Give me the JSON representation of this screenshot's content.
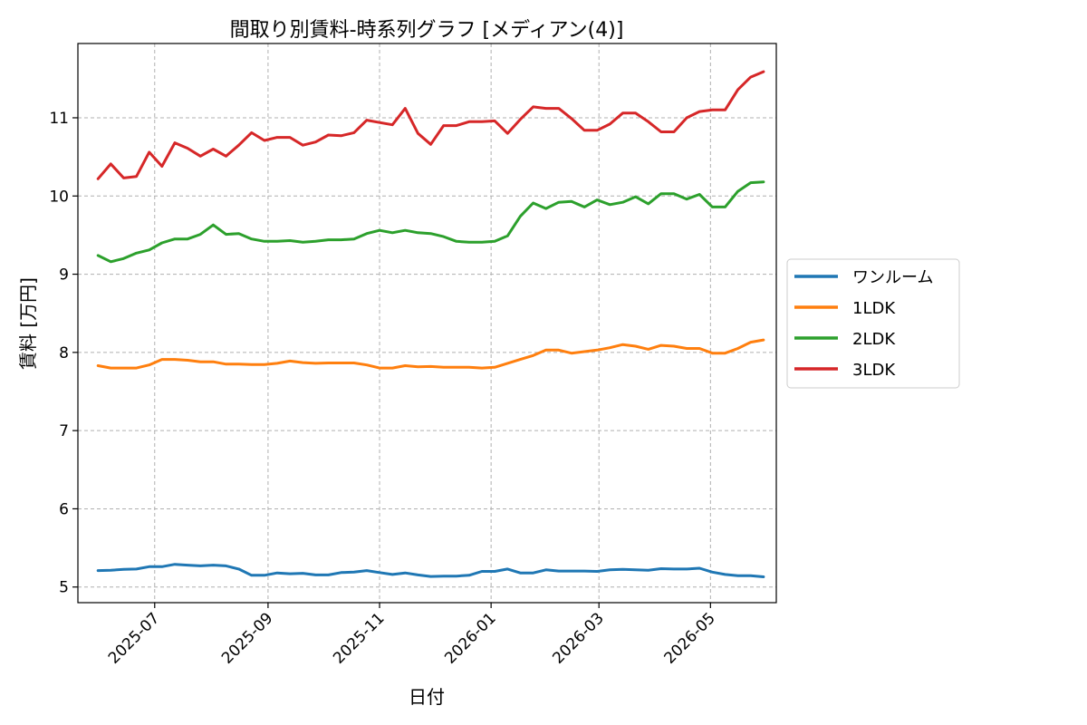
{
  "chart_data": {
    "type": "line",
    "title": "間取り別賃料-時系列グラフ [メディアン(4)]",
    "xlabel": "日付",
    "ylabel": "賃料 [万円]",
    "xlim": [
      "2025-05-20",
      "2026-06-06"
    ],
    "ylim": [
      4.8,
      11.95
    ],
    "yticks": [
      5,
      6,
      7,
      8,
      9,
      10,
      11
    ],
    "xticks": [
      "2025-07",
      "2025-09",
      "2025-11",
      "2026-01",
      "2026-03",
      "2026-05"
    ],
    "grid": true,
    "legend_position": "right-outside",
    "x": [
      "2025-05-31",
      "2025-06-07",
      "2025-06-14",
      "2025-06-21",
      "2025-06-28",
      "2025-07-05",
      "2025-07-12",
      "2025-07-19",
      "2025-07-26",
      "2025-08-02",
      "2025-08-09",
      "2025-08-16",
      "2025-08-23",
      "2025-08-30",
      "2025-09-06",
      "2025-09-13",
      "2025-09-20",
      "2025-09-27",
      "2025-10-04",
      "2025-10-11",
      "2025-10-18",
      "2025-10-25",
      "2025-11-01",
      "2025-11-08",
      "2025-11-15",
      "2025-11-22",
      "2025-11-29",
      "2025-12-06",
      "2025-12-13",
      "2025-12-20",
      "2025-12-27",
      "2026-01-03",
      "2026-01-10",
      "2026-01-17",
      "2026-01-24",
      "2026-01-31",
      "2026-02-07",
      "2026-02-14",
      "2026-02-21",
      "2026-02-28",
      "2026-03-07",
      "2026-03-14",
      "2026-03-21",
      "2026-03-28",
      "2026-04-04",
      "2026-04-11",
      "2026-04-18",
      "2026-04-25",
      "2026-05-02",
      "2026-05-09",
      "2026-05-16",
      "2026-05-23",
      "2026-05-30"
    ],
    "series": [
      {
        "name": "ワンルーム",
        "color": "#1f77b4",
        "values": [
          5.21,
          5.215,
          5.225,
          5.23,
          5.26,
          5.26,
          5.29,
          5.28,
          5.27,
          5.28,
          5.27,
          5.23,
          5.15,
          5.15,
          5.18,
          5.17,
          5.175,
          5.155,
          5.155,
          5.185,
          5.19,
          5.21,
          5.185,
          5.16,
          5.18,
          5.155,
          5.135,
          5.14,
          5.14,
          5.15,
          5.2,
          5.2,
          5.23,
          5.18,
          5.18,
          5.22,
          5.205,
          5.205,
          5.205,
          5.2,
          5.22,
          5.225,
          5.22,
          5.215,
          5.235,
          5.23,
          5.23,
          5.24,
          5.19,
          5.16,
          5.145,
          5.145,
          5.13
        ]
      },
      {
        "name": "1LDK",
        "color": "#ff7f0e",
        "values": [
          7.83,
          7.8,
          7.8,
          7.8,
          7.84,
          7.91,
          7.91,
          7.9,
          7.88,
          7.88,
          7.85,
          7.85,
          7.845,
          7.845,
          7.86,
          7.89,
          7.87,
          7.86,
          7.865,
          7.865,
          7.865,
          7.84,
          7.8,
          7.8,
          7.83,
          7.815,
          7.82,
          7.81,
          7.81,
          7.81,
          7.8,
          7.81,
          7.86,
          7.91,
          7.96,
          8.03,
          8.03,
          7.99,
          8.01,
          8.03,
          8.06,
          8.1,
          8.08,
          8.04,
          8.09,
          8.08,
          8.05,
          8.05,
          7.99,
          7.99,
          8.05,
          8.13,
          8.16
        ]
      },
      {
        "name": "2LDK",
        "color": "#2ca02c",
        "values": [
          9.24,
          9.16,
          9.2,
          9.27,
          9.31,
          9.4,
          9.45,
          9.45,
          9.51,
          9.63,
          9.51,
          9.52,
          9.45,
          9.42,
          9.42,
          9.43,
          9.41,
          9.42,
          9.44,
          9.44,
          9.45,
          9.52,
          9.56,
          9.53,
          9.56,
          9.53,
          9.52,
          9.48,
          9.42,
          9.41,
          9.41,
          9.42,
          9.49,
          9.74,
          9.91,
          9.84,
          9.92,
          9.93,
          9.86,
          9.95,
          9.89,
          9.92,
          9.99,
          9.9,
          10.03,
          10.03,
          9.96,
          10.02,
          9.86,
          9.86,
          10.06,
          10.17,
          10.18
        ]
      },
      {
        "name": "3LDK",
        "color": "#d62728",
        "values": [
          10.22,
          10.41,
          10.23,
          10.25,
          10.56,
          10.38,
          10.68,
          10.61,
          10.51,
          10.6,
          10.51,
          10.65,
          10.81,
          10.71,
          10.75,
          10.75,
          10.65,
          10.69,
          10.78,
          10.77,
          10.81,
          10.97,
          10.94,
          10.91,
          11.12,
          10.8,
          10.66,
          10.9,
          10.9,
          10.95,
          10.95,
          10.96,
          10.8,
          10.98,
          11.14,
          11.12,
          11.12,
          10.99,
          10.84,
          10.84,
          10.92,
          11.06,
          11.06,
          10.95,
          10.82,
          10.82,
          11.0,
          11.08,
          11.1,
          11.1,
          11.36,
          11.52,
          11.59
        ]
      }
    ]
  }
}
